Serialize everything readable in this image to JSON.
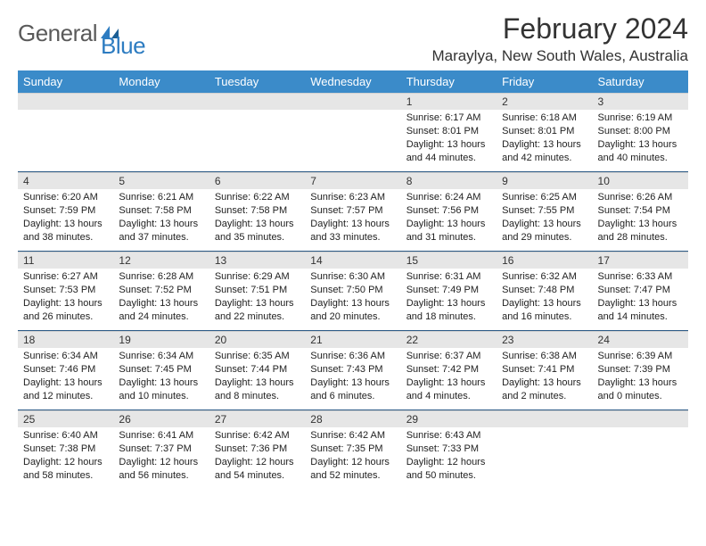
{
  "brand": {
    "part1": "General",
    "part2": "Blue"
  },
  "header": {
    "month_title": "February 2024",
    "location": "Maraylya, New South Wales, Australia"
  },
  "colors": {
    "header_bg": "#3b8bc9",
    "header_text": "#ffffff",
    "daynum_bg": "#e6e6e6",
    "week_border": "#2d5b87",
    "logo_gray": "#5a5a5a",
    "logo_blue": "#2d7cc1"
  },
  "day_headers": [
    "Sunday",
    "Monday",
    "Tuesday",
    "Wednesday",
    "Thursday",
    "Friday",
    "Saturday"
  ],
  "weeks": [
    [
      {
        "empty": true
      },
      {
        "empty": true
      },
      {
        "empty": true
      },
      {
        "empty": true
      },
      {
        "num": "1",
        "sunrise": "Sunrise: 6:17 AM",
        "sunset": "Sunset: 8:01 PM",
        "daylight": "Daylight: 13 hours and 44 minutes."
      },
      {
        "num": "2",
        "sunrise": "Sunrise: 6:18 AM",
        "sunset": "Sunset: 8:01 PM",
        "daylight": "Daylight: 13 hours and 42 minutes."
      },
      {
        "num": "3",
        "sunrise": "Sunrise: 6:19 AM",
        "sunset": "Sunset: 8:00 PM",
        "daylight": "Daylight: 13 hours and 40 minutes."
      }
    ],
    [
      {
        "num": "4",
        "sunrise": "Sunrise: 6:20 AM",
        "sunset": "Sunset: 7:59 PM",
        "daylight": "Daylight: 13 hours and 38 minutes."
      },
      {
        "num": "5",
        "sunrise": "Sunrise: 6:21 AM",
        "sunset": "Sunset: 7:58 PM",
        "daylight": "Daylight: 13 hours and 37 minutes."
      },
      {
        "num": "6",
        "sunrise": "Sunrise: 6:22 AM",
        "sunset": "Sunset: 7:58 PM",
        "daylight": "Daylight: 13 hours and 35 minutes."
      },
      {
        "num": "7",
        "sunrise": "Sunrise: 6:23 AM",
        "sunset": "Sunset: 7:57 PM",
        "daylight": "Daylight: 13 hours and 33 minutes."
      },
      {
        "num": "8",
        "sunrise": "Sunrise: 6:24 AM",
        "sunset": "Sunset: 7:56 PM",
        "daylight": "Daylight: 13 hours and 31 minutes."
      },
      {
        "num": "9",
        "sunrise": "Sunrise: 6:25 AM",
        "sunset": "Sunset: 7:55 PM",
        "daylight": "Daylight: 13 hours and 29 minutes."
      },
      {
        "num": "10",
        "sunrise": "Sunrise: 6:26 AM",
        "sunset": "Sunset: 7:54 PM",
        "daylight": "Daylight: 13 hours and 28 minutes."
      }
    ],
    [
      {
        "num": "11",
        "sunrise": "Sunrise: 6:27 AM",
        "sunset": "Sunset: 7:53 PM",
        "daylight": "Daylight: 13 hours and 26 minutes."
      },
      {
        "num": "12",
        "sunrise": "Sunrise: 6:28 AM",
        "sunset": "Sunset: 7:52 PM",
        "daylight": "Daylight: 13 hours and 24 minutes."
      },
      {
        "num": "13",
        "sunrise": "Sunrise: 6:29 AM",
        "sunset": "Sunset: 7:51 PM",
        "daylight": "Daylight: 13 hours and 22 minutes."
      },
      {
        "num": "14",
        "sunrise": "Sunrise: 6:30 AM",
        "sunset": "Sunset: 7:50 PM",
        "daylight": "Daylight: 13 hours and 20 minutes."
      },
      {
        "num": "15",
        "sunrise": "Sunrise: 6:31 AM",
        "sunset": "Sunset: 7:49 PM",
        "daylight": "Daylight: 13 hours and 18 minutes."
      },
      {
        "num": "16",
        "sunrise": "Sunrise: 6:32 AM",
        "sunset": "Sunset: 7:48 PM",
        "daylight": "Daylight: 13 hours and 16 minutes."
      },
      {
        "num": "17",
        "sunrise": "Sunrise: 6:33 AM",
        "sunset": "Sunset: 7:47 PM",
        "daylight": "Daylight: 13 hours and 14 minutes."
      }
    ],
    [
      {
        "num": "18",
        "sunrise": "Sunrise: 6:34 AM",
        "sunset": "Sunset: 7:46 PM",
        "daylight": "Daylight: 13 hours and 12 minutes."
      },
      {
        "num": "19",
        "sunrise": "Sunrise: 6:34 AM",
        "sunset": "Sunset: 7:45 PM",
        "daylight": "Daylight: 13 hours and 10 minutes."
      },
      {
        "num": "20",
        "sunrise": "Sunrise: 6:35 AM",
        "sunset": "Sunset: 7:44 PM",
        "daylight": "Daylight: 13 hours and 8 minutes."
      },
      {
        "num": "21",
        "sunrise": "Sunrise: 6:36 AM",
        "sunset": "Sunset: 7:43 PM",
        "daylight": "Daylight: 13 hours and 6 minutes."
      },
      {
        "num": "22",
        "sunrise": "Sunrise: 6:37 AM",
        "sunset": "Sunset: 7:42 PM",
        "daylight": "Daylight: 13 hours and 4 minutes."
      },
      {
        "num": "23",
        "sunrise": "Sunrise: 6:38 AM",
        "sunset": "Sunset: 7:41 PM",
        "daylight": "Daylight: 13 hours and 2 minutes."
      },
      {
        "num": "24",
        "sunrise": "Sunrise: 6:39 AM",
        "sunset": "Sunset: 7:39 PM",
        "daylight": "Daylight: 13 hours and 0 minutes."
      }
    ],
    [
      {
        "num": "25",
        "sunrise": "Sunrise: 6:40 AM",
        "sunset": "Sunset: 7:38 PM",
        "daylight": "Daylight: 12 hours and 58 minutes."
      },
      {
        "num": "26",
        "sunrise": "Sunrise: 6:41 AM",
        "sunset": "Sunset: 7:37 PM",
        "daylight": "Daylight: 12 hours and 56 minutes."
      },
      {
        "num": "27",
        "sunrise": "Sunrise: 6:42 AM",
        "sunset": "Sunset: 7:36 PM",
        "daylight": "Daylight: 12 hours and 54 minutes."
      },
      {
        "num": "28",
        "sunrise": "Sunrise: 6:42 AM",
        "sunset": "Sunset: 7:35 PM",
        "daylight": "Daylight: 12 hours and 52 minutes."
      },
      {
        "num": "29",
        "sunrise": "Sunrise: 6:43 AM",
        "sunset": "Sunset: 7:33 PM",
        "daylight": "Daylight: 12 hours and 50 minutes."
      },
      {
        "empty": true
      },
      {
        "empty": true
      }
    ]
  ]
}
